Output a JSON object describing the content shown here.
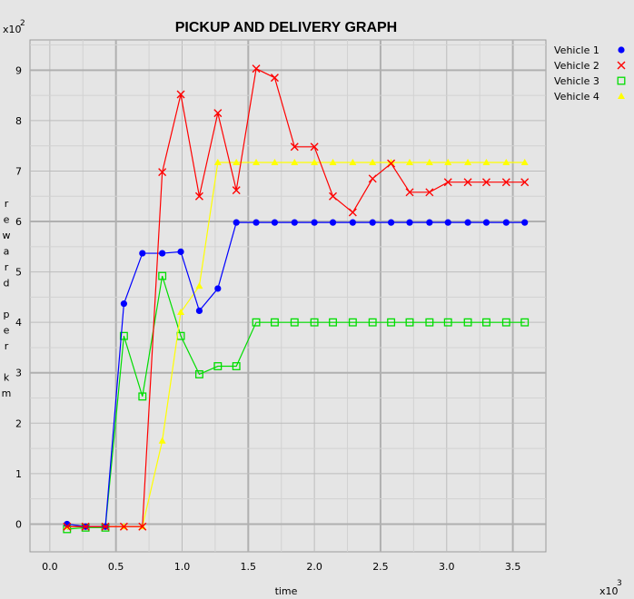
{
  "chart_data": {
    "type": "line",
    "title": "PICKUP AND DELIVERY GRAPH",
    "xlabel": "time",
    "ylabel": "reward per km",
    "x_multiplier": "x10",
    "x_exponent": "3",
    "y_multiplier": "x10",
    "y_exponent": "2",
    "xlim": [
      -0.15,
      3.75
    ],
    "ylim": [
      -0.55,
      9.6
    ],
    "x_ticks": [
      0.0,
      0.5,
      1.0,
      1.5,
      2.0,
      2.5,
      3.0,
      3.5
    ],
    "x_tick_labels": [
      "0.0",
      "0.5",
      "1.0",
      "1.5",
      "2.0",
      "2.5",
      "3.0",
      "3.5"
    ],
    "y_ticks": [
      0,
      1,
      2,
      3,
      4,
      5,
      6,
      7,
      8,
      9
    ],
    "y_tick_labels": [
      "0",
      "1",
      "2",
      "3",
      "4",
      "5",
      "6",
      "7",
      "8",
      "9"
    ],
    "grid": true,
    "legend_position": "right-top",
    "series": [
      {
        "name": "Vehicle 1",
        "color": "#0000ff",
        "marker": "circle",
        "x": [
          0.13,
          0.27,
          0.42,
          0.56,
          0.7,
          0.85,
          0.99,
          1.13,
          1.27,
          1.41,
          1.56,
          1.7,
          1.85,
          2.0,
          2.14,
          2.29,
          2.44,
          2.58,
          2.72,
          2.87,
          3.01,
          3.16,
          3.3,
          3.45,
          3.59
        ],
        "y": [
          0.0,
          -0.05,
          -0.05,
          4.37,
          5.37,
          5.37,
          5.4,
          4.23,
          4.67,
          5.98,
          5.98,
          5.98,
          5.98,
          5.98,
          5.98,
          5.98,
          5.98,
          5.98,
          5.98,
          5.98,
          5.98,
          5.98,
          5.98,
          5.98,
          5.98
        ]
      },
      {
        "name": "Vehicle 2",
        "color": "#ff0000",
        "marker": "cross",
        "x": [
          0.13,
          0.27,
          0.42,
          0.56,
          0.7,
          0.85,
          0.99,
          1.13,
          1.27,
          1.41,
          1.56,
          1.7,
          1.85,
          2.0,
          2.14,
          2.29,
          2.44,
          2.58,
          2.72,
          2.87,
          3.01,
          3.16,
          3.3,
          3.45,
          3.59
        ],
        "y": [
          -0.05,
          -0.05,
          -0.05,
          -0.05,
          -0.05,
          6.98,
          8.52,
          6.5,
          8.15,
          6.62,
          9.03,
          8.85,
          7.48,
          7.48,
          6.5,
          6.18,
          6.85,
          7.15,
          6.58,
          6.58,
          6.78,
          6.78,
          6.78,
          6.78,
          6.78
        ]
      },
      {
        "name": "Vehicle 3",
        "color": "#00dd00",
        "marker": "square",
        "x": [
          0.13,
          0.27,
          0.42,
          0.56,
          0.7,
          0.85,
          0.99,
          1.13,
          1.27,
          1.41,
          1.56,
          1.7,
          1.85,
          2.0,
          2.14,
          2.29,
          2.44,
          2.58,
          2.72,
          2.87,
          3.01,
          3.16,
          3.3,
          3.45,
          3.59
        ],
        "y": [
          -0.1,
          -0.07,
          -0.07,
          3.73,
          2.53,
          4.92,
          3.73,
          2.97,
          3.13,
          3.13,
          4.0,
          4.0,
          4.0,
          4.0,
          4.0,
          4.0,
          4.0,
          4.0,
          4.0,
          4.0,
          4.0,
          4.0,
          4.0,
          4.0,
          4.0
        ]
      },
      {
        "name": "Vehicle 4",
        "color": "#ffff00",
        "marker": "triangle",
        "x": [
          0.13,
          0.27,
          0.42,
          0.56,
          0.7,
          0.85,
          0.99,
          1.13,
          1.27,
          1.41,
          1.56,
          1.7,
          1.85,
          2.0,
          2.14,
          2.29,
          2.44,
          2.58,
          2.72,
          2.87,
          3.01,
          3.16,
          3.3,
          3.45,
          3.59
        ],
        "y": [
          -0.05,
          -0.05,
          -0.05,
          -0.05,
          -0.05,
          1.65,
          4.2,
          4.72,
          7.17,
          7.17,
          7.17,
          7.17,
          7.17,
          7.17,
          7.17,
          7.17,
          7.17,
          7.17,
          7.17,
          7.17,
          7.17,
          7.17,
          7.17,
          7.17,
          7.17
        ]
      }
    ]
  }
}
